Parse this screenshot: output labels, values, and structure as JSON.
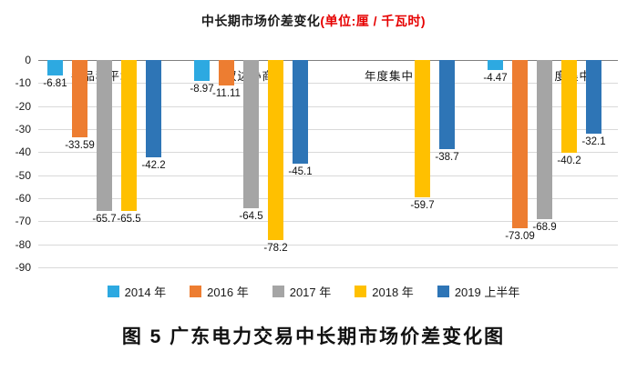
{
  "page": {
    "title_main": "中长期市场价差变化",
    "title_unit": "(单位:厘 / 千瓦时)",
    "caption": "图 5  广东电力交易中长期市场价差变化图"
  },
  "chart_data": {
    "type": "bar",
    "title": "中长期市场价差变化(单位:厘 / 千瓦时)",
    "xlabel": "",
    "ylabel": "",
    "ylim": [
      -90,
      0
    ],
    "yticks": [
      0,
      -10,
      -20,
      -30,
      -40,
      -50,
      -60,
      -70,
      -80,
      -90
    ],
    "grid": true,
    "legend_position": "bottom",
    "categories": [
      "各品种平均",
      "双边协商",
      "年度集中",
      "月度集中"
    ],
    "series": [
      {
        "name": "2014 年",
        "color": "#2da9e1",
        "values": [
          -6.81,
          -8.97,
          null,
          -4.47
        ]
      },
      {
        "name": "2016 年",
        "color": "#ed7d31",
        "values": [
          -33.59,
          -11.11,
          null,
          -73.09
        ]
      },
      {
        "name": "2017 年",
        "color": "#a5a5a5",
        "values": [
          -65.7,
          -64.5,
          null,
          -68.9
        ]
      },
      {
        "name": "2018 年",
        "color": "#ffc000",
        "values": [
          -65.5,
          -78.2,
          -59.7,
          -40.2
        ]
      },
      {
        "name": "2019 上半年",
        "color": "#2e75b6",
        "values": [
          -42.2,
          -45.1,
          -38.7,
          -32.1
        ]
      }
    ]
  }
}
